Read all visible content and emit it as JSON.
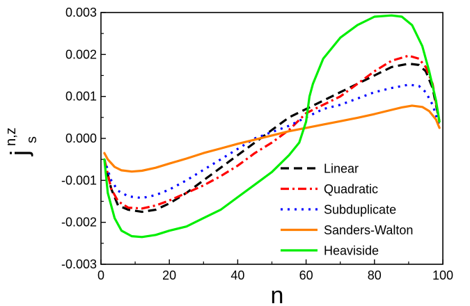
{
  "chart_data": {
    "type": "line",
    "xlabel": "n",
    "ylabel": {
      "main": "j",
      "sub": "s",
      "sup": "n,z"
    },
    "xlim": [
      0,
      100
    ],
    "ylim": [
      -0.003,
      0.003
    ],
    "xticks": [
      0,
      20,
      40,
      60,
      80,
      100
    ],
    "yticks": [
      -0.003,
      -0.002,
      -0.001,
      0.0,
      0.001,
      0.002,
      0.003
    ],
    "xtick_labels": [
      "0",
      "20",
      "40",
      "60",
      "80",
      "100"
    ],
    "ytick_labels": [
      "-0.003",
      "-0.002",
      "-0.001",
      "0.000",
      "0.001",
      "0.002",
      "0.003"
    ],
    "grid": false,
    "legend_position": "lower-right",
    "series": [
      {
        "name": "Linear",
        "color": "#000000",
        "dash": "dash",
        "x": [
          1,
          3,
          5,
          8,
          12,
          16,
          20,
          25,
          30,
          35,
          40,
          45,
          50,
          55,
          60,
          65,
          70,
          75,
          80,
          85,
          90,
          93,
          95,
          97,
          99
        ],
        "y": [
          -0.0005,
          -0.0012,
          -0.0016,
          -0.0017,
          -0.00175,
          -0.0017,
          -0.00155,
          -0.0013,
          -0.001,
          -0.0007,
          -0.0004,
          -0.0001,
          0.0002,
          0.0005,
          0.0007,
          0.0009,
          0.0011,
          0.0013,
          0.0015,
          0.0017,
          0.00178,
          0.00175,
          0.0016,
          0.0012,
          0.0004
        ]
      },
      {
        "name": "Quadratic",
        "color": "#ff0000",
        "dash": "dashdot",
        "x": [
          1,
          3,
          5,
          8,
          12,
          16,
          20,
          25,
          30,
          35,
          40,
          45,
          50,
          55,
          60,
          65,
          70,
          75,
          80,
          85,
          90,
          93,
          95,
          97,
          99
        ],
        "y": [
          -0.0005,
          -0.0012,
          -0.0015,
          -0.00165,
          -0.00167,
          -0.0016,
          -0.00148,
          -0.0013,
          -0.00112,
          -0.0009,
          -0.00065,
          -0.00035,
          -0.0001,
          0.0002,
          0.0006,
          0.0008,
          0.001,
          0.0013,
          0.0016,
          0.00185,
          0.00197,
          0.0019,
          0.0017,
          0.0013,
          0.0004
        ]
      },
      {
        "name": "Subduplicate",
        "color": "#0000ff",
        "dash": "dot",
        "x": [
          1,
          3,
          5,
          8,
          12,
          16,
          20,
          25,
          30,
          35,
          40,
          45,
          50,
          55,
          60,
          65,
          70,
          75,
          80,
          85,
          90,
          93,
          95,
          97,
          99
        ],
        "y": [
          -0.0005,
          -0.001,
          -0.00125,
          -0.00138,
          -0.00142,
          -0.00135,
          -0.00122,
          -0.001,
          -0.00075,
          -0.0005,
          -0.00025,
          0.0,
          0.00015,
          0.0003,
          0.0005,
          0.0007,
          0.0008,
          0.00095,
          0.0011,
          0.0012,
          0.00128,
          0.00125,
          0.0011,
          0.0008,
          0.0003
        ]
      },
      {
        "name": "Sanders-Walton",
        "color": "#ff8000",
        "dash": "solid",
        "x": [
          1,
          2,
          4,
          6,
          9,
          12,
          16,
          20,
          25,
          30,
          35,
          40,
          45,
          50,
          55,
          60,
          65,
          70,
          75,
          80,
          85,
          88,
          91,
          94,
          96,
          98,
          99
        ],
        "y": [
          -0.00035,
          -0.0005,
          -0.00068,
          -0.00076,
          -0.00079,
          -0.00077,
          -0.0007,
          -0.0006,
          -0.00048,
          -0.00035,
          -0.00024,
          -0.00013,
          -3e-05,
          7e-05,
          0.00017,
          0.00025,
          0.00033,
          0.00041,
          0.00049,
          0.00058,
          0.00068,
          0.00074,
          0.00078,
          0.00075,
          0.00065,
          0.00045,
          0.00025
        ]
      },
      {
        "name": "Heaviside",
        "color": "#00ee00",
        "dash": "solid",
        "x": [
          1,
          2,
          4,
          6,
          9,
          12,
          16,
          20,
          25,
          30,
          35,
          40,
          45,
          50,
          55,
          58,
          60,
          61,
          62,
          65,
          70,
          75,
          80,
          85,
          88,
          91,
          94,
          96,
          98,
          99
        ],
        "y": [
          -0.0005,
          -0.0013,
          -0.0019,
          -0.0022,
          -0.00233,
          -0.00235,
          -0.0023,
          -0.0022,
          -0.0021,
          -0.0019,
          -0.0017,
          -0.0014,
          -0.0011,
          -0.0008,
          -0.0004,
          -0.0001,
          0.0004,
          0.001,
          0.0013,
          0.0019,
          0.0024,
          0.0027,
          0.0029,
          0.00293,
          0.0029,
          0.0027,
          0.0022,
          0.0016,
          0.0009,
          0.0004
        ]
      }
    ]
  }
}
